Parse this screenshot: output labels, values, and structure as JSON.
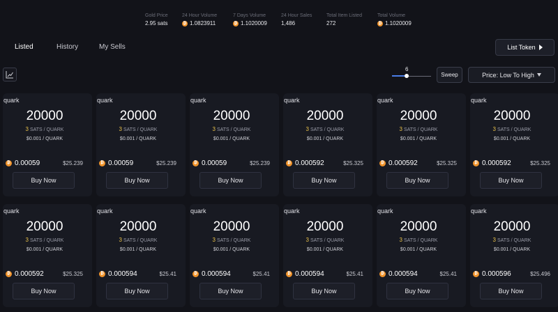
{
  "stats": [
    {
      "label": "Gold Price",
      "value": "2.95 sats",
      "coin": false
    },
    {
      "label": "24 Hour Volume",
      "value": "1.0823911",
      "coin": true
    },
    {
      "label": "7 Days Volume",
      "value": "1.1020009",
      "coin": true
    },
    {
      "label": "24 Hour Sales",
      "value": "1,486",
      "coin": false
    },
    {
      "label": "Total Item Listed",
      "value": "272",
      "coin": false
    },
    {
      "label": "Total Volume",
      "value": "1.1020009",
      "coin": true
    }
  ],
  "tabs": [
    {
      "label": "Listed",
      "active": true
    },
    {
      "label": "History",
      "active": false
    },
    {
      "label": "My Sells",
      "active": false
    }
  ],
  "list_token_label": "List Token",
  "slider": {
    "value": "6",
    "fraction": 0.38
  },
  "sweep_label": "Sweep",
  "sort_label": "Price: Low To High",
  "card_common": {
    "rate_suffix": "SATS / QUARK",
    "usd_rate": "$0.001 / QUARK",
    "buy_label": "Buy Now"
  },
  "cards": [
    {
      "name": "quark",
      "amount": "20000",
      "rate": "3",
      "price": "0.00059",
      "usd": "$25.239"
    },
    {
      "name": "quark",
      "amount": "20000",
      "rate": "3",
      "price": "0.00059",
      "usd": "$25.239"
    },
    {
      "name": "quark",
      "amount": "20000",
      "rate": "3",
      "price": "0.00059",
      "usd": "$25.239"
    },
    {
      "name": "quark",
      "amount": "20000",
      "rate": "3",
      "price": "0.000592",
      "usd": "$25.325"
    },
    {
      "name": "quark",
      "amount": "20000",
      "rate": "3",
      "price": "0.000592",
      "usd": "$25.325"
    },
    {
      "name": "quark",
      "amount": "20000",
      "rate": "3",
      "price": "0.000592",
      "usd": "$25.325"
    },
    {
      "name": "quark",
      "amount": "20000",
      "rate": "3",
      "price": "0.000592",
      "usd": "$25.325"
    },
    {
      "name": "quark",
      "amount": "20000",
      "rate": "3",
      "price": "0.000594",
      "usd": "$25.41"
    },
    {
      "name": "quark",
      "amount": "20000",
      "rate": "3",
      "price": "0.000594",
      "usd": "$25.41"
    },
    {
      "name": "quark",
      "amount": "20000",
      "rate": "3",
      "price": "0.000594",
      "usd": "$25.41"
    },
    {
      "name": "quark",
      "amount": "20000",
      "rate": "3",
      "price": "0.000594",
      "usd": "$25.41"
    },
    {
      "name": "quark",
      "amount": "20000",
      "rate": "3",
      "price": "0.000596",
      "usd": "$25.496"
    }
  ],
  "colors": {
    "accent": "#4a7de8",
    "coin": "#f0932a",
    "rate_number": "#e8c14a",
    "background": "#121319"
  },
  "icons": {
    "coin": "bitcoin-coin-icon",
    "chart": "chart-line-icon",
    "play": "play-icon",
    "chevron": "chevron-down-icon"
  }
}
